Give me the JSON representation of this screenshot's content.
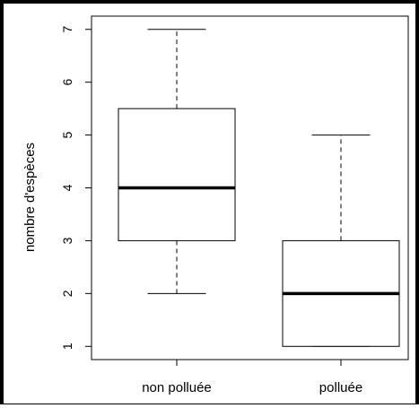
{
  "chart_data": {
    "type": "boxplot",
    "ylabel": "nombre d'espèces",
    "ylim": [
      0.75,
      7.25
    ],
    "yticks": [
      1,
      2,
      3,
      4,
      5,
      6,
      7
    ],
    "ytick_labels": [
      "1",
      "2",
      "3",
      "4",
      "5",
      "6",
      "7"
    ],
    "categories": [
      "non polluée",
      "polluée"
    ],
    "boxes": [
      {
        "category": "non polluée",
        "min": 2,
        "q1": 3,
        "median": 4,
        "q3": 5.5,
        "max": 7
      },
      {
        "category": "polluée",
        "min": 1,
        "q1": 1,
        "median": 2,
        "q3": 3,
        "max": 5
      }
    ],
    "grid": false,
    "colors": {
      "stroke": "#000000",
      "background": "#ffffff"
    }
  }
}
